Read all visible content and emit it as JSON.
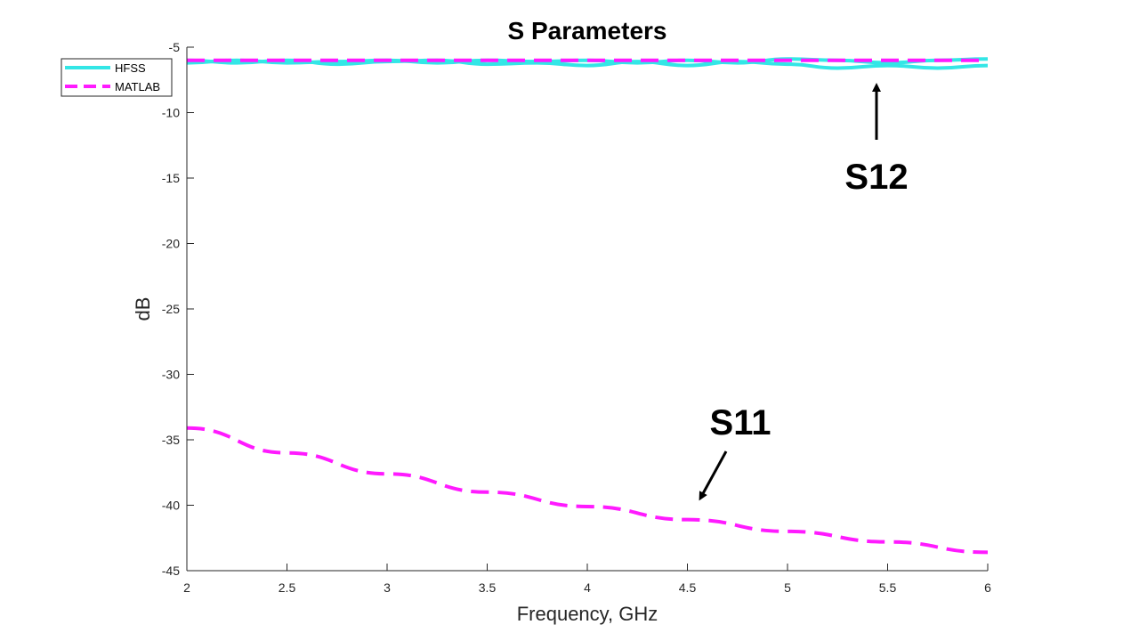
{
  "chart_data": {
    "type": "line",
    "title": "S Parameters",
    "xlabel": "Frequency, GHz",
    "ylabel": "dB",
    "xlim": [
      2,
      6
    ],
    "ylim": [
      -45,
      -5
    ],
    "xticks": [
      2,
      2.5,
      3,
      3.5,
      4,
      4.5,
      5,
      5.5,
      6
    ],
    "yticks": [
      -5,
      -10,
      -15,
      -20,
      -25,
      -30,
      -35,
      -40,
      -45
    ],
    "grid": false,
    "legend_position": "top-left",
    "legend": [
      {
        "name": "HFSS",
        "color": "#33E6E6",
        "style": "solid"
      },
      {
        "name": "MATLAB",
        "color": "#FF1AFF",
        "style": "dashed"
      }
    ],
    "series": [
      {
        "name": "HFSS",
        "color": "#33E6E6",
        "style": "solid",
        "x": [
          2,
          2.25,
          2.5,
          2.75,
          3,
          3.25,
          3.5,
          3.75,
          4,
          4.25,
          4.5,
          4.75,
          5,
          5.25,
          5.5,
          5.75,
          6
        ],
        "y": [
          -6.2,
          -6.0,
          -6.2,
          -6.1,
          -6.0,
          -6.2,
          -6.0,
          -6.1,
          -6.0,
          -6.2,
          -6.0,
          -6.2,
          -5.9,
          -6.0,
          -6.2,
          -6.0,
          -5.9
        ]
      },
      {
        "name": "HFSS",
        "color": "#33E6E6",
        "style": "solid",
        "x": [
          2,
          2.25,
          2.5,
          2.75,
          3,
          3.25,
          3.5,
          3.75,
          4,
          4.25,
          4.5,
          4.75,
          5,
          5.25,
          5.5,
          5.75,
          6
        ],
        "y": [
          -6.0,
          -6.2,
          -6.0,
          -6.3,
          -6.1,
          -6.0,
          -6.3,
          -6.2,
          -6.4,
          -6.1,
          -6.4,
          -6.1,
          -6.3,
          -6.6,
          -6.4,
          -6.6,
          -6.4
        ]
      },
      {
        "name": "MATLAB",
        "color": "#FF1AFF",
        "style": "dashed",
        "x": [
          2,
          6
        ],
        "y": [
          -6.0,
          -6.0
        ]
      },
      {
        "name": "MATLAB",
        "color": "#FF1AFF",
        "style": "dashed",
        "x": [
          2,
          2.5,
          3,
          3.5,
          4,
          4.5,
          5,
          5.5,
          6
        ],
        "y": [
          -34.1,
          -36.0,
          -37.6,
          -39.0,
          -40.1,
          -41.1,
          -42.0,
          -42.8,
          -43.6
        ]
      }
    ],
    "annotations": [
      {
        "text": "S12",
        "points_to": [
          5.45,
          -6.6
        ]
      },
      {
        "text": "S11",
        "points_to": [
          4.55,
          -40.8
        ]
      }
    ]
  }
}
